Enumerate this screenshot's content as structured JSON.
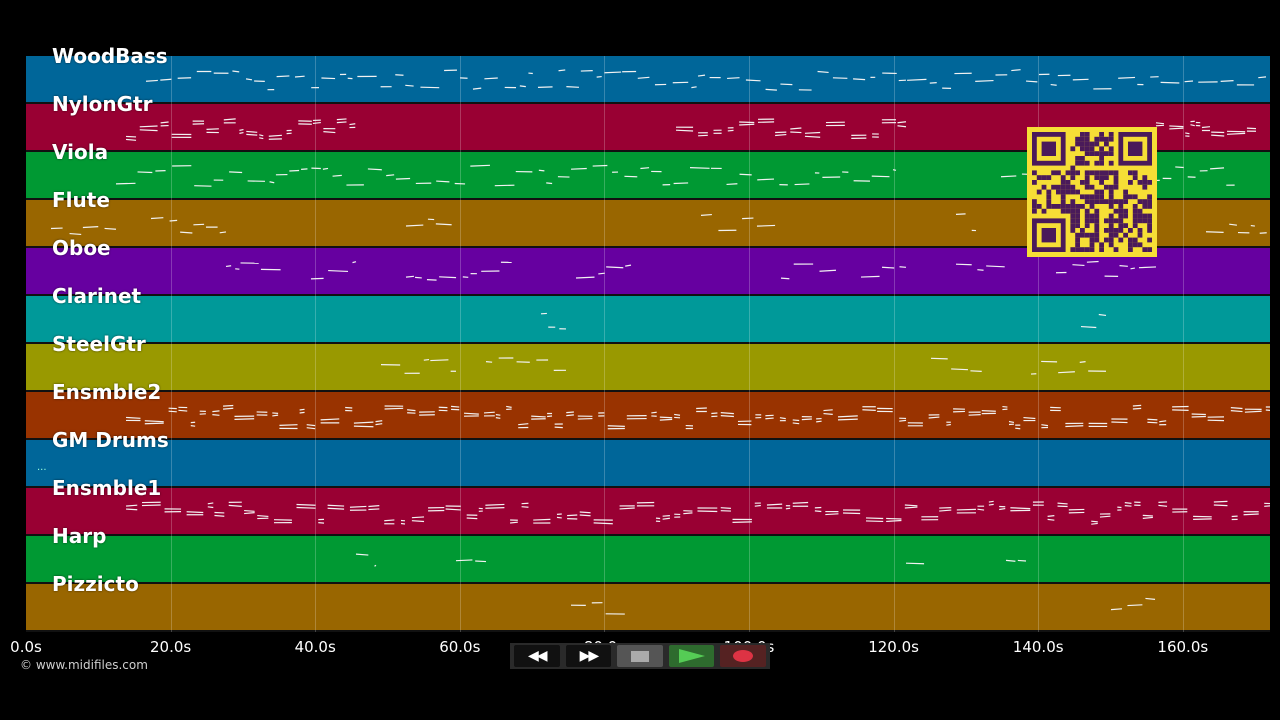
{
  "tracks": [
    {
      "name": "WoodBass",
      "color": "#006699"
    },
    {
      "name": "NylonGtr",
      "color": "#990033"
    },
    {
      "name": "Viola",
      "color": "#009933"
    },
    {
      "name": "Flute",
      "color": "#996600"
    },
    {
      "name": "Oboe",
      "color": "#6600a0"
    },
    {
      "name": "Clarinet",
      "color": "#009999"
    },
    {
      "name": "SteelGtr",
      "color": "#999900"
    },
    {
      "name": "Ensmble2",
      "color": "#993300"
    },
    {
      "name": "GM Drums",
      "color": "#006699"
    },
    {
      "name": "Ensmble1",
      "color": "#990033"
    },
    {
      "name": "Harp",
      "color": "#009933"
    },
    {
      "name": "Pizzicto",
      "color": "#996600"
    }
  ],
  "timeline": {
    "ticks": [
      "0.0s",
      "20.0s",
      "40.0s",
      "60.0s",
      "80.0s",
      "100.0s",
      "120.0s",
      "140.0s",
      "160.0s"
    ],
    "tick_seconds": [
      0,
      20,
      40,
      60,
      80,
      100,
      120,
      140,
      160
    ],
    "max_seconds": 172
  },
  "copyright": "© www.midifiles.com",
  "ellipsis": "...",
  "transport": {
    "rewind_icon": "rewind-icon",
    "forward_icon": "fast-forward-icon",
    "stop_icon": "stop-icon",
    "play_icon": "play-icon",
    "record_icon": "record-icon",
    "stop_color": "#aaaaaa",
    "play_color": "#55cc55",
    "record_color": "#dd3344"
  },
  "qr_code": {
    "foreground": "#4a1a5a",
    "background": "#f6de36"
  }
}
